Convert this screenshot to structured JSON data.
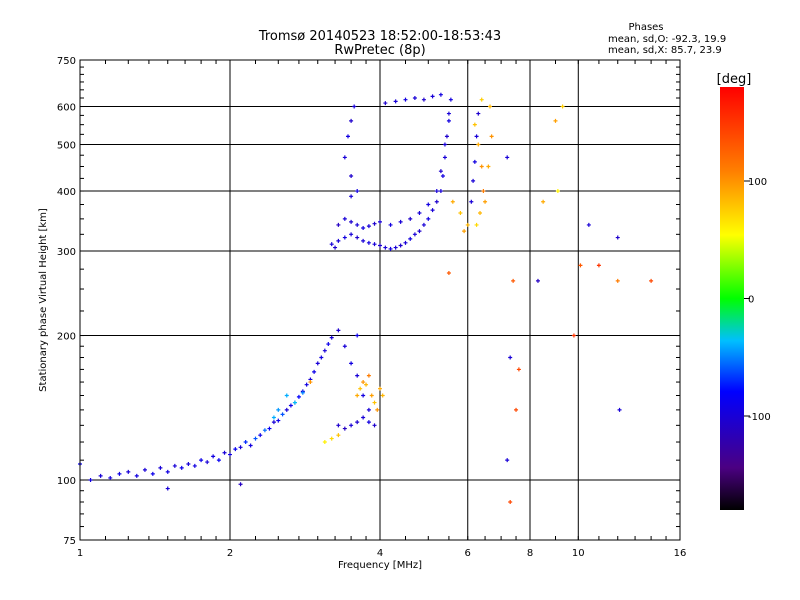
{
  "chart_data": {
    "type": "scatter",
    "title": "Tromsø 20140523 18:52:00-18:53:43",
    "subtitle": "RwPretec (8p)",
    "phase_box": {
      "heading": "Phases",
      "line1": "mean, sd,O: -92.3, 19.9",
      "line2": "mean, sd,X:  85.7, 23.9"
    },
    "xlabel": "Frequency [MHz]",
    "ylabel": "Stationary phase Virtual Height [km]",
    "x_scale": "log2",
    "y_scale": "log",
    "xlim": [
      1,
      16
    ],
    "ylim": [
      75,
      750
    ],
    "x_ticks": [
      1,
      2,
      4,
      6,
      8,
      10,
      16
    ],
    "x_tick_labels": [
      "1",
      "2",
      "4",
      "6",
      "8",
      "10",
      "16"
    ],
    "y_ticks": [
      75,
      100,
      200,
      300,
      400,
      500,
      600,
      750
    ],
    "y_tick_labels": [
      "75",
      "100",
      "200",
      "300",
      "400",
      "500",
      "600",
      "750"
    ],
    "grid": true,
    "colorbar": {
      "label": "[deg]",
      "range": [
        -180,
        180
      ],
      "ticks": [
        100,
        0,
        -100
      ],
      "tick_labels": [
        "100",
        "0",
        "-100"
      ]
    },
    "series": [
      {
        "points": [
          [
            1.05,
            100,
            -95
          ],
          [
            1.1,
            102,
            -100
          ],
          [
            1.15,
            101,
            -98
          ],
          [
            1.2,
            103,
            -92
          ],
          [
            1.25,
            104,
            -100
          ],
          [
            1.3,
            102,
            -95
          ],
          [
            1.35,
            105,
            -100
          ],
          [
            1.4,
            103,
            -90
          ],
          [
            1.45,
            106,
            -100
          ],
          [
            1.5,
            104,
            -95
          ],
          [
            1.55,
            107,
            -100
          ],
          [
            1.6,
            106,
            -90
          ],
          [
            1.65,
            108,
            -100
          ],
          [
            1.7,
            107,
            -95
          ],
          [
            1.75,
            110,
            -90
          ],
          [
            1.8,
            109,
            -100
          ],
          [
            1.85,
            112,
            -95
          ],
          [
            1.9,
            110,
            -85
          ],
          [
            1.95,
            114,
            -100
          ],
          [
            2.0,
            113,
            -95
          ],
          [
            2.05,
            116,
            -85
          ],
          [
            2.1,
            117,
            -100
          ],
          [
            2.15,
            120,
            -70
          ],
          [
            2.2,
            118,
            -95
          ],
          [
            2.25,
            122,
            -60
          ],
          [
            2.3,
            124,
            -90
          ],
          [
            2.35,
            127,
            -55
          ],
          [
            2.4,
            128,
            -85
          ],
          [
            2.45,
            132,
            -100
          ],
          [
            2.5,
            133,
            -90
          ],
          [
            2.55,
            137,
            -60
          ],
          [
            2.6,
            140,
            -100
          ],
          [
            2.65,
            143,
            -90
          ],
          [
            2.7,
            145,
            -100
          ],
          [
            2.75,
            149,
            -80
          ],
          [
            2.8,
            153,
            -100
          ],
          [
            2.85,
            158,
            -95
          ],
          [
            2.9,
            162,
            -100
          ],
          [
            2.95,
            168,
            -90
          ],
          [
            3.0,
            175,
            -100
          ],
          [
            3.05,
            180,
            -95
          ],
          [
            3.1,
            186,
            -100
          ],
          [
            3.15,
            192,
            -90
          ],
          [
            3.2,
            198,
            -100
          ],
          [
            3.3,
            205,
            -105
          ],
          [
            3.4,
            190,
            -100
          ],
          [
            3.5,
            175,
            -95
          ],
          [
            3.6,
            165,
            -100
          ],
          [
            3.7,
            150,
            -95
          ],
          [
            3.8,
            140,
            -100
          ],
          [
            3.3,
            130,
            -105
          ],
          [
            3.4,
            128,
            -110
          ],
          [
            3.5,
            130,
            -100
          ],
          [
            3.6,
            132,
            -105
          ],
          [
            3.7,
            135,
            -100
          ],
          [
            3.8,
            132,
            -95
          ],
          [
            3.9,
            130,
            -105
          ],
          [
            3.1,
            120,
            60
          ],
          [
            3.2,
            122,
            70
          ],
          [
            3.3,
            124,
            80
          ],
          [
            3.6,
            150,
            90
          ],
          [
            3.65,
            155,
            80
          ],
          [
            3.7,
            160,
            100
          ],
          [
            3.75,
            158,
            85
          ],
          [
            3.8,
            165,
            110
          ],
          [
            3.85,
            150,
            95
          ],
          [
            3.9,
            145,
            80
          ],
          [
            3.95,
            140,
            100
          ],
          [
            4.0,
            155,
            90
          ],
          [
            4.05,
            150,
            85
          ],
          [
            2.5,
            140,
            -45
          ],
          [
            2.6,
            150,
            -40
          ],
          [
            2.7,
            145,
            -35
          ],
          [
            2.8,
            152,
            -50
          ],
          [
            2.45,
            135,
            -40
          ],
          [
            3.2,
            310,
            -100
          ],
          [
            3.25,
            305,
            -105
          ],
          [
            3.3,
            315,
            -100
          ],
          [
            3.4,
            320,
            -95
          ],
          [
            3.5,
            325,
            -100
          ],
          [
            3.6,
            320,
            -105
          ],
          [
            3.7,
            315,
            -100
          ],
          [
            3.8,
            312,
            -95
          ],
          [
            3.9,
            310,
            -100
          ],
          [
            4.0,
            308,
            -105
          ],
          [
            4.1,
            305,
            -100
          ],
          [
            4.2,
            303,
            -95
          ],
          [
            4.3,
            305,
            -100
          ],
          [
            4.4,
            308,
            -105
          ],
          [
            4.5,
            312,
            -100
          ],
          [
            4.6,
            318,
            -95
          ],
          [
            4.7,
            325,
            -100
          ],
          [
            4.8,
            330,
            -105
          ],
          [
            4.9,
            340,
            -100
          ],
          [
            5.0,
            350,
            -95
          ],
          [
            5.1,
            365,
            -100
          ],
          [
            5.2,
            380,
            -105
          ],
          [
            5.3,
            400,
            -100
          ],
          [
            5.35,
            430,
            -95
          ],
          [
            5.4,
            470,
            -100
          ],
          [
            5.45,
            520,
            -105
          ],
          [
            5.5,
            580,
            -100
          ],
          [
            5.55,
            620,
            -95
          ],
          [
            3.3,
            340,
            -110
          ],
          [
            3.4,
            350,
            -100
          ],
          [
            3.5,
            345,
            -105
          ],
          [
            3.6,
            340,
            -100
          ],
          [
            3.7,
            335,
            -95
          ],
          [
            3.8,
            338,
            -100
          ],
          [
            3.9,
            342,
            -105
          ],
          [
            4.0,
            345,
            -100
          ],
          [
            4.2,
            340,
            -95
          ],
          [
            4.4,
            345,
            -100
          ],
          [
            4.6,
            350,
            -105
          ],
          [
            4.8,
            360,
            -100
          ],
          [
            5.0,
            375,
            -95
          ],
          [
            5.2,
            400,
            -100
          ],
          [
            5.3,
            440,
            -105
          ],
          [
            5.4,
            500,
            -100
          ],
          [
            5.5,
            560,
            -95
          ],
          [
            3.4,
            470,
            -100
          ],
          [
            3.45,
            520,
            -95
          ],
          [
            3.5,
            560,
            -105
          ],
          [
            3.55,
            600,
            -100
          ],
          [
            3.5,
            430,
            -105
          ],
          [
            3.6,
            400,
            -95
          ],
          [
            3.5,
            390,
            -100
          ],
          [
            4.1,
            610,
            -105
          ],
          [
            4.3,
            615,
            -100
          ],
          [
            4.5,
            620,
            -95
          ],
          [
            4.7,
            625,
            -100
          ],
          [
            4.9,
            620,
            -105
          ],
          [
            5.1,
            630,
            -100
          ],
          [
            5.3,
            635,
            -95
          ],
          [
            6.2,
            550,
            80
          ],
          [
            6.3,
            500,
            90
          ],
          [
            6.4,
            450,
            100
          ],
          [
            6.45,
            400,
            110
          ],
          [
            6.5,
            380,
            95
          ],
          [
            6.35,
            360,
            85
          ],
          [
            6.25,
            340,
            70
          ],
          [
            6.6,
            450,
            90
          ],
          [
            6.7,
            520,
            100
          ],
          [
            6.65,
            600,
            85
          ],
          [
            6.4,
            620,
            75
          ],
          [
            6.15,
            420,
            -100
          ],
          [
            6.2,
            460,
            -95
          ],
          [
            6.25,
            520,
            -100
          ],
          [
            6.3,
            580,
            -105
          ],
          [
            6.1,
            380,
            -100
          ],
          [
            5.6,
            380,
            90
          ],
          [
            5.8,
            360,
            80
          ],
          [
            6.0,
            340,
            85
          ],
          [
            5.9,
            330,
            95
          ],
          [
            7.2,
            470,
            -100
          ],
          [
            7.3,
            180,
            -100
          ],
          [
            7.2,
            110,
            -100
          ],
          [
            8.3,
            260,
            -110
          ],
          [
            10.5,
            340,
            -100
          ],
          [
            12.0,
            320,
            -105
          ],
          [
            12.1,
            140,
            -100
          ],
          [
            9.3,
            600,
            75
          ],
          [
            9.0,
            560,
            95
          ],
          [
            9.1,
            400,
            60
          ],
          [
            8.5,
            380,
            90
          ],
          [
            10.1,
            280,
            130
          ],
          [
            11.0,
            280,
            150
          ],
          [
            12.0,
            260,
            110
          ],
          [
            14.0,
            260,
            140
          ],
          [
            9.8,
            200,
            150
          ],
          [
            7.6,
            170,
            140
          ],
          [
            7.5,
            140,
            140
          ],
          [
            7.4,
            260,
            130
          ],
          [
            5.5,
            270,
            130
          ],
          [
            7.3,
            90,
            140
          ],
          [
            2.9,
            160,
            100
          ],
          [
            3.6,
            200,
            -90
          ],
          [
            1.0,
            108,
            -85
          ],
          [
            1.5,
            96,
            -100
          ],
          [
            2.1,
            98,
            -110
          ]
        ]
      }
    ]
  }
}
